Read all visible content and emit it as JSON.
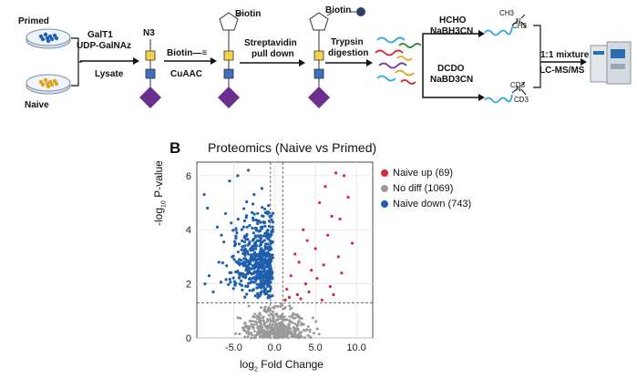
{
  "panel_a": {
    "primed_label": "Primed",
    "naive_label": "Naive",
    "step1_line1": "GalT1",
    "step1_line2": "UDP-GalNAz",
    "step1_below": "Lysate",
    "azide_label": "N3",
    "step2_line1": "Biotin—≡",
    "step2_below": "CuAAC",
    "biotin_label": "Biotin",
    "step3_line1": "Streptavidin",
    "step3_line2": "pull down",
    "biotin_bead_label": "Biotin",
    "step4_line1": "Trypsin",
    "step4_line2": "digestion",
    "light_reagent1": "HCHO",
    "light_reagent2": "NaBH3CN",
    "heavy_reagent1": "DCDO",
    "heavy_reagent2": "NaBD3CN",
    "light_ch3_top": "CH3",
    "light_ch3_bottom": "CH3",
    "heavy_cd3_top": "CD3",
    "heavy_cd3_bottom": "CD3",
    "mix_line1": "1:1 mixture",
    "mix_line2": "LC-MS/MS",
    "colors": {
      "sugar_square": "#3a6fc4",
      "sugar_yellow": "#f3d14a",
      "diamond": "#6b2f8e",
      "dish_blue": "#1f63b8",
      "dish_orange": "#e0a318"
    }
  },
  "panel_b": {
    "panel_letter": "B",
    "chart_data": {
      "type": "scatter",
      "title": "Proteomics (Naive vs Primed)",
      "xlabel": "log2 Fold Change",
      "ylabel": "-log10 P-value",
      "xlim": [
        -9.5,
        12.0
      ],
      "ylim": [
        0,
        6.5
      ],
      "xticks": [
        "-5.0",
        "0.0",
        "5.0",
        "10.0"
      ],
      "xtick_values": [
        -5,
        0,
        5,
        10
      ],
      "yticks": [
        "0",
        "2",
        "4",
        "6"
      ],
      "ytick_values": [
        0,
        2,
        4,
        6
      ],
      "grid": true,
      "threshold_lines": {
        "x": [
          -0.5,
          1.0
        ],
        "y": 1.3
      },
      "legend_position": "right",
      "series": [
        {
          "name": "Naive up (69)",
          "color": "#d62838",
          "count": 69,
          "points": [
            [
              7.5,
              6.1
            ],
            [
              8.5,
              6.0
            ],
            [
              6.2,
              5.6
            ],
            [
              9.0,
              5.2
            ],
            [
              5.5,
              5.0
            ],
            [
              7.0,
              4.5
            ],
            [
              8.0,
              4.4
            ],
            [
              3.5,
              4.0
            ],
            [
              6.5,
              3.8
            ],
            [
              4.0,
              3.6
            ],
            [
              9.5,
              3.5
            ],
            [
              5.0,
              3.3
            ],
            [
              2.5,
              3.1
            ],
            [
              7.8,
              3.0
            ],
            [
              3.0,
              2.8
            ],
            [
              6.0,
              2.7
            ],
            [
              4.5,
              2.5
            ],
            [
              8.2,
              2.4
            ],
            [
              2.0,
              2.3
            ],
            [
              5.2,
              2.2
            ],
            [
              3.8,
              2.0
            ],
            [
              6.8,
              1.9
            ],
            [
              1.5,
              1.8
            ],
            [
              4.2,
              1.7
            ],
            [
              2.8,
              1.6
            ],
            [
              7.2,
              1.6
            ],
            [
              1.8,
              1.5
            ],
            [
              3.2,
              1.45
            ],
            [
              5.8,
              1.4
            ],
            [
              1.3,
              1.4
            ]
          ]
        },
        {
          "name": "No diff (1069)",
          "color": "#9a9a9a",
          "count": 1069
        },
        {
          "name": "Naive down (743)",
          "color": "#1f5fae",
          "count": 743
        }
      ]
    }
  }
}
